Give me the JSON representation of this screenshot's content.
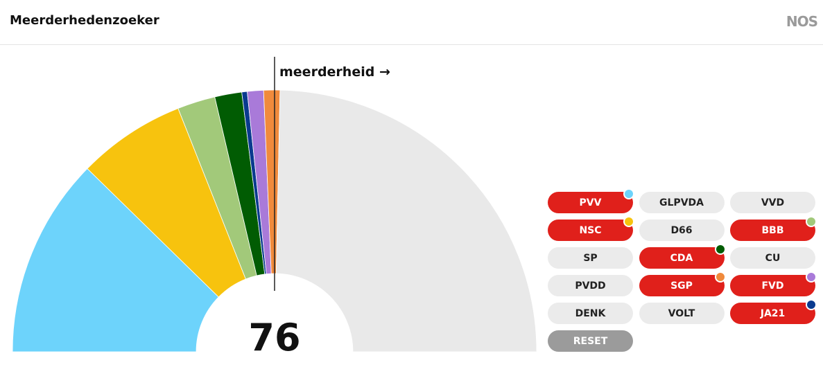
{
  "header": {
    "title": "Meerderhedenzoeker",
    "logo": "NOS"
  },
  "chart_data": {
    "type": "half-donut",
    "values": [
      37,
      20,
      7,
      5,
      1,
      3,
      3,
      74
    ],
    "colors": [
      "#6dd3fb",
      "#f7c30e",
      "#a2c97a",
      "#015c03",
      "#0a3a8f",
      "#a97ad9",
      "#f08a3c",
      "#e9e9e9"
    ],
    "majority_line": 75,
    "majority_label": "meerderheid →",
    "total_label": "76"
  },
  "buttons": [
    {
      "label": "PVV",
      "selected": true,
      "dot": "#6dd3fb"
    },
    {
      "label": "GLPVDA",
      "selected": false
    },
    {
      "label": "VVD",
      "selected": false
    },
    {
      "label": "NSC",
      "selected": true,
      "dot": "#f7c30e"
    },
    {
      "label": "D66",
      "selected": false
    },
    {
      "label": "BBB",
      "selected": true,
      "dot": "#a2c97a"
    },
    {
      "label": "SP",
      "selected": false
    },
    {
      "label": "CDA",
      "selected": true,
      "dot": "#015c03"
    },
    {
      "label": "CU",
      "selected": false
    },
    {
      "label": "PVDD",
      "selected": false
    },
    {
      "label": "SGP",
      "selected": true,
      "dot": "#f08a3c"
    },
    {
      "label": "FVD",
      "selected": true,
      "dot": "#a97ad9"
    },
    {
      "label": "DENK",
      "selected": false
    },
    {
      "label": "VOLT",
      "selected": false
    },
    {
      "label": "JA21",
      "selected": true,
      "dot": "#0a3a8f"
    }
  ],
  "reset_button": "RESET"
}
